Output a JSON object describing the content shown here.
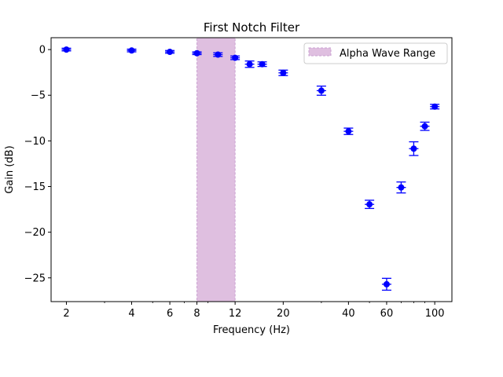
{
  "chart_data": {
    "type": "scatter",
    "title": "First Notch Filter",
    "xlabel": "Frequency (Hz)",
    "ylabel": "Gain (dB)",
    "xscale": "log",
    "xlim": [
      1.7,
      120
    ],
    "ylim": [
      -27.6,
      1.3
    ],
    "xticks": [
      2,
      4,
      6,
      8,
      12,
      20,
      40,
      60,
      100
    ],
    "xtick_labels": [
      "2",
      "4",
      "6",
      "8",
      "12",
      "20",
      "40",
      "60",
      "100"
    ],
    "yticks": [
      0,
      -5,
      -10,
      -15,
      -20,
      -25
    ],
    "ytick_labels": [
      "0",
      "−5",
      "−10",
      "−15",
      "−20",
      "−25"
    ],
    "grid": false,
    "legend": {
      "location": "upper right",
      "entries": [
        "Alpha Wave Range"
      ]
    },
    "shaded_region": {
      "label": "Alpha Wave Range",
      "x_start": 8,
      "x_end": 12,
      "color": "#DFBFE0",
      "edge_color": "#C9A0D0"
    },
    "series": [
      {
        "color": "#0000FF",
        "marker": "circle",
        "points": [
          {
            "x": 2,
            "y": 0.0,
            "err": 0.15
          },
          {
            "x": 4,
            "y": -0.1,
            "err": 0.15
          },
          {
            "x": 6,
            "y": -0.25,
            "err": 0.15
          },
          {
            "x": 8,
            "y": -0.4,
            "err": 0.15
          },
          {
            "x": 10,
            "y": -0.55,
            "err": 0.2
          },
          {
            "x": 12,
            "y": -0.9,
            "err": 0.2
          },
          {
            "x": 14,
            "y": -1.6,
            "err": 0.35
          },
          {
            "x": 16,
            "y": -1.6,
            "err": 0.25
          },
          {
            "x": 20,
            "y": -2.55,
            "err": 0.3
          },
          {
            "x": 30,
            "y": -4.5,
            "err": 0.5
          },
          {
            "x": 40,
            "y": -8.95,
            "err": 0.35
          },
          {
            "x": 50,
            "y": -16.95,
            "err": 0.45
          },
          {
            "x": 60,
            "y": -25.7,
            "err": 0.65
          },
          {
            "x": 70,
            "y": -15.1,
            "err": 0.6
          },
          {
            "x": 80,
            "y": -10.85,
            "err": 0.75
          },
          {
            "x": 90,
            "y": -8.4,
            "err": 0.45
          },
          {
            "x": 100,
            "y": -6.25,
            "err": 0.25
          }
        ]
      }
    ]
  }
}
